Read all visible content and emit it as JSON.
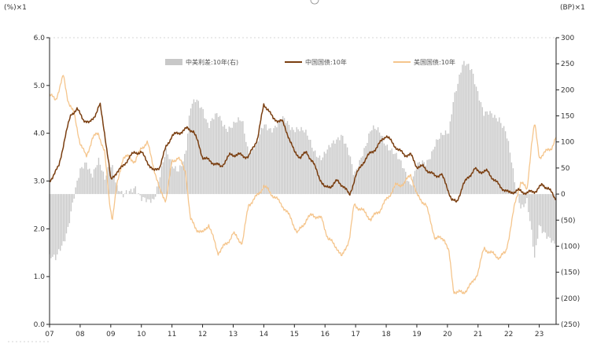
{
  "chart_data": {
    "type": "line",
    "left_unit_label": "(%)×1",
    "right_unit_label": "(BP)×1",
    "x_tick_labels": [
      "07",
      "08",
      "09",
      "10",
      "11",
      "12",
      "13",
      "14",
      "15",
      "16",
      "17",
      "18",
      "19",
      "20",
      "21",
      "22",
      "23"
    ],
    "x_range": [
      2007.0,
      2023.55
    ],
    "left_axis": {
      "min": 0.0,
      "max": 6.0,
      "ticks": [
        "0.0",
        "1.0",
        "2.0",
        "3.0",
        "4.0",
        "5.0",
        "6.0"
      ]
    },
    "right_axis": {
      "min": -250,
      "max": 300,
      "ticks": [
        "300",
        "250",
        "200",
        "150",
        "100",
        "50",
        "0",
        "(50)",
        "(100)",
        "(150)",
        "(200)",
        "(250)"
      ]
    },
    "grid": false,
    "legend_position": "top",
    "legend": [
      {
        "name": "中美利差:10年(右)",
        "color": "#c8c8c8",
        "kind": "bar"
      },
      {
        "name": "中国国债:10年",
        "color": "#7a3e10",
        "kind": "line"
      },
      {
        "name": "美国国债:10年",
        "color": "#f5c58c",
        "kind": "line"
      }
    ],
    "series": [
      {
        "name": "中国国债:10年",
        "axis": "left",
        "points": [
          [
            2007.0,
            3.0
          ],
          [
            2007.3,
            3.3
          ],
          [
            2007.5,
            3.9
          ],
          [
            2007.7,
            4.4
          ],
          [
            2007.9,
            4.5
          ],
          [
            2008.1,
            4.3
          ],
          [
            2008.3,
            4.2
          ],
          [
            2008.5,
            4.4
          ],
          [
            2008.65,
            4.6
          ],
          [
            2008.8,
            4.0
          ],
          [
            2008.95,
            3.3
          ],
          [
            2009.0,
            3.0
          ],
          [
            2009.2,
            3.2
          ],
          [
            2009.4,
            3.3
          ],
          [
            2009.6,
            3.5
          ],
          [
            2009.8,
            3.6
          ],
          [
            2010.0,
            3.6
          ],
          [
            2010.2,
            3.4
          ],
          [
            2010.4,
            3.2
          ],
          [
            2010.6,
            3.3
          ],
          [
            2010.8,
            3.7
          ],
          [
            2011.0,
            3.95
          ],
          [
            2011.2,
            4.0
          ],
          [
            2011.5,
            4.1
          ],
          [
            2011.7,
            4.05
          ],
          [
            2011.85,
            3.8
          ],
          [
            2012.0,
            3.5
          ],
          [
            2012.3,
            3.4
          ],
          [
            2012.6,
            3.3
          ],
          [
            2012.9,
            3.55
          ],
          [
            2013.2,
            3.55
          ],
          [
            2013.5,
            3.5
          ],
          [
            2013.8,
            3.9
          ],
          [
            2014.0,
            4.6
          ],
          [
            2014.15,
            4.5
          ],
          [
            2014.3,
            4.3
          ],
          [
            2014.6,
            4.25
          ],
          [
            2014.8,
            3.95
          ],
          [
            2015.0,
            3.6
          ],
          [
            2015.2,
            3.5
          ],
          [
            2015.4,
            3.6
          ],
          [
            2015.6,
            3.4
          ],
          [
            2015.8,
            3.1
          ],
          [
            2016.0,
            2.85
          ],
          [
            2016.2,
            2.9
          ],
          [
            2016.4,
            3.0
          ],
          [
            2016.6,
            2.9
          ],
          [
            2016.8,
            2.7
          ],
          [
            2017.0,
            3.1
          ],
          [
            2017.2,
            3.35
          ],
          [
            2017.5,
            3.6
          ],
          [
            2017.7,
            3.7
          ],
          [
            2017.9,
            3.9
          ],
          [
            2018.0,
            3.95
          ],
          [
            2018.2,
            3.8
          ],
          [
            2018.4,
            3.65
          ],
          [
            2018.6,
            3.55
          ],
          [
            2018.8,
            3.55
          ],
          [
            2019.0,
            3.3
          ],
          [
            2019.2,
            3.3
          ],
          [
            2019.4,
            3.2
          ],
          [
            2019.6,
            3.1
          ],
          [
            2019.8,
            3.15
          ],
          [
            2020.0,
            2.85
          ],
          [
            2020.15,
            2.6
          ],
          [
            2020.3,
            2.55
          ],
          [
            2020.5,
            2.9
          ],
          [
            2020.7,
            3.1
          ],
          [
            2020.9,
            3.25
          ],
          [
            2021.0,
            3.2
          ],
          [
            2021.3,
            3.2
          ],
          [
            2021.5,
            3.05
          ],
          [
            2021.7,
            2.9
          ],
          [
            2022.0,
            2.75
          ],
          [
            2022.3,
            2.8
          ],
          [
            2022.6,
            2.75
          ],
          [
            2022.9,
            2.8
          ],
          [
            2023.1,
            2.92
          ],
          [
            2023.3,
            2.85
          ],
          [
            2023.5,
            2.65
          ]
        ]
      },
      {
        "name": "美国国债:10年",
        "axis": "left",
        "points": [
          [
            2007.0,
            4.8
          ],
          [
            2007.2,
            4.7
          ],
          [
            2007.45,
            5.2
          ],
          [
            2007.6,
            4.7
          ],
          [
            2007.8,
            4.4
          ],
          [
            2008.0,
            3.8
          ],
          [
            2008.2,
            3.5
          ],
          [
            2008.4,
            3.9
          ],
          [
            2008.6,
            4.0
          ],
          [
            2008.8,
            3.6
          ],
          [
            2008.95,
            2.6
          ],
          [
            2009.05,
            2.2
          ],
          [
            2009.2,
            2.9
          ],
          [
            2009.4,
            3.5
          ],
          [
            2009.6,
            3.5
          ],
          [
            2009.8,
            3.4
          ],
          [
            2010.0,
            3.7
          ],
          [
            2010.2,
            3.8
          ],
          [
            2010.4,
            3.3
          ],
          [
            2010.6,
            2.8
          ],
          [
            2010.8,
            2.6
          ],
          [
            2011.0,
            3.4
          ],
          [
            2011.2,
            3.5
          ],
          [
            2011.45,
            3.2
          ],
          [
            2011.6,
            2.2
          ],
          [
            2011.8,
            2.0
          ],
          [
            2012.0,
            1.9
          ],
          [
            2012.2,
            2.1
          ],
          [
            2012.5,
            1.5
          ],
          [
            2012.8,
            1.7
          ],
          [
            2013.0,
            1.9
          ],
          [
            2013.3,
            1.7
          ],
          [
            2013.5,
            2.5
          ],
          [
            2013.8,
            2.7
          ],
          [
            2014.0,
            2.9
          ],
          [
            2014.3,
            2.7
          ],
          [
            2014.6,
            2.5
          ],
          [
            2014.9,
            2.2
          ],
          [
            2015.1,
            1.9
          ],
          [
            2015.4,
            2.2
          ],
          [
            2015.6,
            2.3
          ],
          [
            2015.9,
            2.2
          ],
          [
            2016.1,
            1.8
          ],
          [
            2016.4,
            1.6
          ],
          [
            2016.55,
            1.4
          ],
          [
            2016.8,
            1.8
          ],
          [
            2016.95,
            2.5
          ],
          [
            2017.2,
            2.4
          ],
          [
            2017.5,
            2.2
          ],
          [
            2017.8,
            2.4
          ],
          [
            2018.0,
            2.6
          ],
          [
            2018.3,
            2.9
          ],
          [
            2018.6,
            2.95
          ],
          [
            2018.8,
            3.15
          ],
          [
            2019.0,
            2.7
          ],
          [
            2019.3,
            2.5
          ],
          [
            2019.6,
            1.8
          ],
          [
            2019.9,
            1.8
          ],
          [
            2020.05,
            1.5
          ],
          [
            2020.2,
            0.7
          ],
          [
            2020.5,
            0.65
          ],
          [
            2020.8,
            0.85
          ],
          [
            2021.0,
            1.1
          ],
          [
            2021.2,
            1.6
          ],
          [
            2021.4,
            1.5
          ],
          [
            2021.7,
            1.4
          ],
          [
            2021.9,
            1.5
          ],
          [
            2022.0,
            1.8
          ],
          [
            2022.2,
            2.5
          ],
          [
            2022.4,
            3.0
          ],
          [
            2022.6,
            2.8
          ],
          [
            2022.75,
            3.8
          ],
          [
            2022.85,
            4.2
          ],
          [
            2023.0,
            3.5
          ],
          [
            2023.2,
            3.6
          ],
          [
            2023.4,
            3.7
          ],
          [
            2023.55,
            3.9
          ]
        ]
      },
      {
        "name": "中美利差:10年(右)",
        "axis": "right",
        "type": "bar",
        "points": [
          [
            2007.0,
            -120
          ],
          [
            2007.2,
            -130
          ],
          [
            2007.45,
            -90
          ],
          [
            2007.6,
            -60
          ],
          [
            2007.75,
            -20
          ],
          [
            2008.0,
            40
          ],
          [
            2008.2,
            65
          ],
          [
            2008.4,
            40
          ],
          [
            2008.6,
            60
          ],
          [
            2008.8,
            25
          ],
          [
            2008.95,
            60
          ],
          [
            2009.05,
            60
          ],
          [
            2009.2,
            15
          ],
          [
            2009.4,
            -10
          ],
          [
            2009.6,
            5
          ],
          [
            2009.8,
            20
          ],
          [
            2010.0,
            -10
          ],
          [
            2010.2,
            -20
          ],
          [
            2010.4,
            -10
          ],
          [
            2010.6,
            40
          ],
          [
            2010.8,
            80
          ],
          [
            2011.0,
            50
          ],
          [
            2011.2,
            50
          ],
          [
            2011.45,
            80
          ],
          [
            2011.6,
            160
          ],
          [
            2011.8,
            180
          ],
          [
            2012.0,
            170
          ],
          [
            2012.2,
            130
          ],
          [
            2012.5,
            150
          ],
          [
            2012.8,
            130
          ],
          [
            2013.0,
            130
          ],
          [
            2013.3,
            140
          ],
          [
            2013.5,
            85
          ],
          [
            2013.8,
            95
          ],
          [
            2014.0,
            130
          ],
          [
            2014.3,
            130
          ],
          [
            2014.6,
            140
          ],
          [
            2014.9,
            130
          ],
          [
            2015.1,
            130
          ],
          [
            2015.4,
            110
          ],
          [
            2015.6,
            90
          ],
          [
            2015.9,
            70
          ],
          [
            2016.1,
            80
          ],
          [
            2016.4,
            110
          ],
          [
            2016.55,
            120
          ],
          [
            2016.8,
            70
          ],
          [
            2016.95,
            30
          ],
          [
            2017.2,
            80
          ],
          [
            2017.5,
            120
          ],
          [
            2017.8,
            120
          ],
          [
            2018.0,
            100
          ],
          [
            2018.3,
            70
          ],
          [
            2018.6,
            50
          ],
          [
            2018.8,
            20
          ],
          [
            2019.0,
            50
          ],
          [
            2019.3,
            60
          ],
          [
            2019.6,
            100
          ],
          [
            2019.9,
            110
          ],
          [
            2020.05,
            120
          ],
          [
            2020.2,
            190
          ],
          [
            2020.5,
            245
          ],
          [
            2020.8,
            240
          ],
          [
            2021.0,
            200
          ],
          [
            2021.2,
            150
          ],
          [
            2021.4,
            150
          ],
          [
            2021.7,
            150
          ],
          [
            2021.9,
            120
          ],
          [
            2022.0,
            90
          ],
          [
            2022.2,
            20
          ],
          [
            2022.4,
            -20
          ],
          [
            2022.6,
            -10
          ],
          [
            2022.75,
            -80
          ],
          [
            2022.85,
            -130
          ],
          [
            2023.0,
            -60
          ],
          [
            2023.2,
            -70
          ],
          [
            2023.4,
            -90
          ],
          [
            2023.55,
            -110
          ]
        ]
      }
    ]
  }
}
